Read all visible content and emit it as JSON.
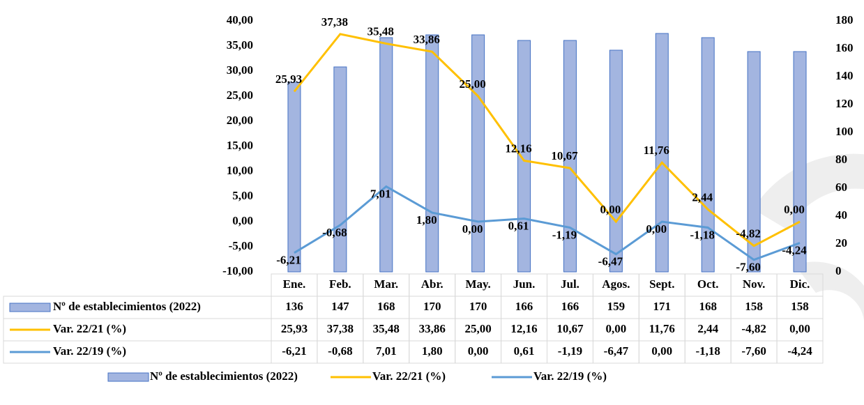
{
  "chart_data": {
    "type": "bar-line-table",
    "categories": [
      "Ene.",
      "Feb.",
      "Mar.",
      "Abr.",
      "May.",
      "Jun.",
      "Jul.",
      "Agos.",
      "Sept.",
      "Oct.",
      "Nov.",
      "Dic."
    ],
    "series": [
      {
        "name": "Nº de establecimientos (2022)",
        "type": "bar",
        "axis": "y2",
        "color": "#a3b5e0",
        "edge": "#4472c4",
        "values": [
          136,
          147,
          168,
          170,
          170,
          166,
          166,
          159,
          171,
          168,
          158,
          158
        ]
      },
      {
        "name": "Var. 22/21 (%)",
        "type": "line",
        "color": "#ffc000",
        "values": [
          25.93,
          37.38,
          35.48,
          33.86,
          25.0,
          12.16,
          10.67,
          0.0,
          11.76,
          2.44,
          -4.82,
          0.0
        ],
        "value_labels": [
          "25,93",
          "37,38",
          "35,48",
          "33,86",
          "25,00",
          "12,16",
          "10,67",
          "0,00",
          "11,76",
          "2,44",
          "-4,82",
          "0,00"
        ]
      },
      {
        "name": "Var. 22/19 (%)",
        "type": "line",
        "color": "#5b9bd5",
        "values": [
          -6.21,
          -0.68,
          7.01,
          1.8,
          0.0,
          0.61,
          -1.19,
          -6.47,
          0.0,
          -1.18,
          -7.6,
          -4.24
        ],
        "value_labels": [
          "-6,21",
          "-0,68",
          "7,01",
          "1,80",
          "0,00",
          "0,61",
          "-1,19",
          "-6,47",
          "0,00",
          "-1,18",
          "-7,60",
          "-4,24"
        ]
      }
    ],
    "ylim": [
      -10,
      40
    ],
    "yticks": [
      {
        "value": -10,
        "label": "-10,00"
      },
      {
        "value": -5,
        "label": "-5,00"
      },
      {
        "value": 0,
        "label": "0,00"
      },
      {
        "value": 5,
        "label": "5,00"
      },
      {
        "value": 10,
        "label": "10,00"
      },
      {
        "value": 15,
        "label": "15,00"
      },
      {
        "value": 20,
        "label": "20,00"
      },
      {
        "value": 25,
        "label": "25,00"
      },
      {
        "value": 30,
        "label": "30,00"
      },
      {
        "value": 35,
        "label": "35,00"
      },
      {
        "value": 40,
        "label": "40,00"
      }
    ],
    "y2lim": [
      0,
      180
    ],
    "y2ticks": [
      0,
      20,
      40,
      60,
      80,
      100,
      120,
      140,
      160,
      180
    ],
    "grid": false,
    "legend": "bottom"
  }
}
